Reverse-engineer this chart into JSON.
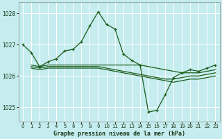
{
  "title": "Graphe pression niveau de la mer (hPa)",
  "background_color": "#c5ecee",
  "grid_color": "#aadddd",
  "line_color": "#1a5c1a",
  "xlim": [
    -0.5,
    23.5
  ],
  "ylim": [
    1024.55,
    1028.35
  ],
  "yticks": [
    1025,
    1026,
    1027,
    1028
  ],
  "xticks": [
    0,
    1,
    2,
    3,
    4,
    5,
    6,
    7,
    8,
    9,
    10,
    11,
    12,
    13,
    14,
    15,
    16,
    17,
    18,
    19,
    20,
    21,
    22,
    23
  ],
  "main_x": [
    0,
    1,
    2,
    3,
    4,
    5,
    6,
    7,
    8,
    9,
    10,
    11,
    12,
    13,
    14,
    15,
    16,
    17,
    18,
    19,
    20,
    21,
    22,
    23
  ],
  "main_y": [
    1027.0,
    1026.75,
    1026.3,
    1026.45,
    1026.55,
    1026.8,
    1026.85,
    1027.1,
    1027.6,
    1028.05,
    1027.65,
    1027.5,
    1026.7,
    1026.5,
    1026.35,
    1024.85,
    1024.9,
    1025.4,
    1025.95,
    1026.1,
    1026.2,
    1026.15,
    1026.25,
    1026.35
  ],
  "flat1_x": [
    1,
    2,
    3,
    4,
    5,
    6,
    7,
    8,
    9,
    10,
    11,
    12,
    13,
    14,
    15,
    16,
    17,
    18,
    19,
    20,
    21,
    22,
    23
  ],
  "flat1_y": [
    1026.35,
    1026.3,
    1026.35,
    1026.35,
    1026.35,
    1026.35,
    1026.35,
    1026.35,
    1026.35,
    1026.35,
    1026.35,
    1026.35,
    1026.35,
    1026.35,
    1026.3,
    1026.25,
    1026.2,
    1026.15,
    1026.1,
    1026.1,
    1026.1,
    1026.15,
    1026.2
  ],
  "flat2_x": [
    1,
    2,
    3,
    4,
    5,
    6,
    7,
    8,
    9,
    10,
    11,
    12,
    13,
    14,
    15,
    16,
    17,
    18,
    19,
    20,
    21,
    22,
    23
  ],
  "flat2_y": [
    1026.3,
    1026.25,
    1026.3,
    1026.3,
    1026.3,
    1026.3,
    1026.3,
    1026.3,
    1026.3,
    1026.25,
    1026.2,
    1026.15,
    1026.1,
    1026.05,
    1026.0,
    1025.95,
    1025.9,
    1025.9,
    1025.95,
    1026.0,
    1026.0,
    1026.05,
    1026.1
  ],
  "flat3_x": [
    1,
    2,
    3,
    4,
    5,
    6,
    7,
    8,
    9,
    10,
    11,
    12,
    13,
    14,
    15,
    16,
    17,
    18,
    19,
    20,
    21,
    22,
    23
  ],
  "flat3_y": [
    1026.25,
    1026.2,
    1026.25,
    1026.25,
    1026.25,
    1026.25,
    1026.25,
    1026.25,
    1026.25,
    1026.2,
    1026.15,
    1026.1,
    1026.05,
    1026.0,
    1025.95,
    1025.9,
    1025.85,
    1025.8,
    1025.85,
    1025.9,
    1025.9,
    1025.95,
    1026.0
  ]
}
